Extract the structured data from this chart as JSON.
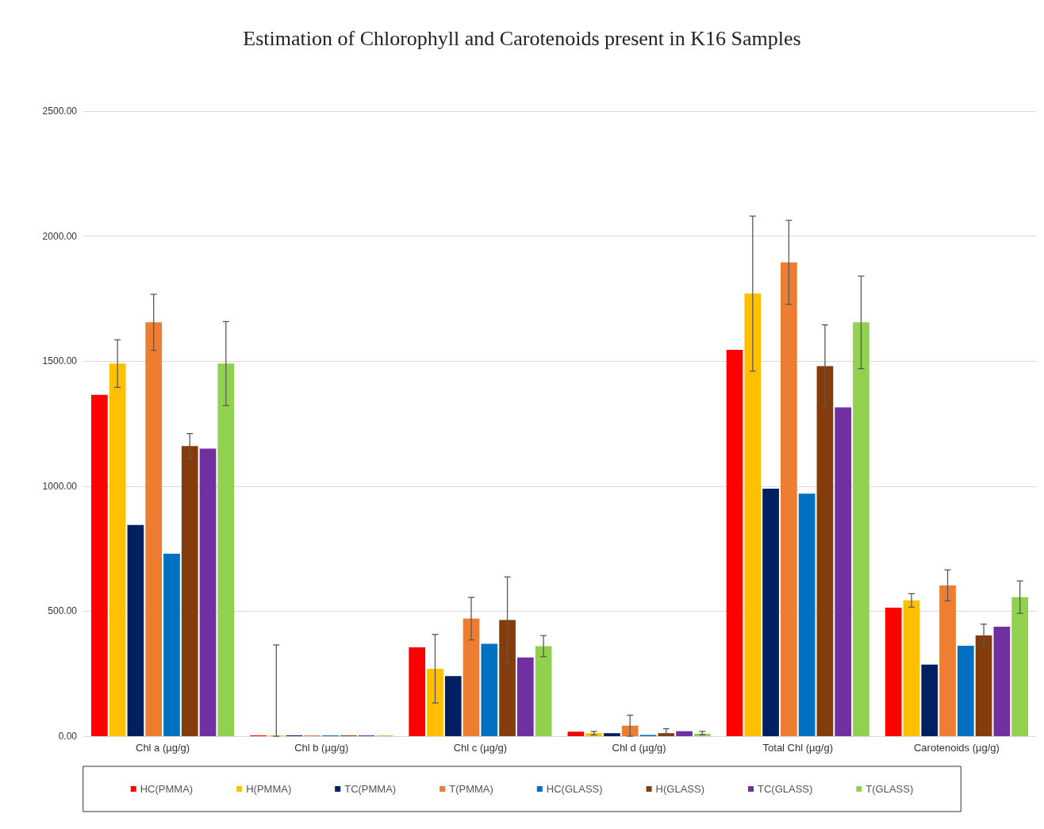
{
  "chart_data": {
    "type": "bar",
    "title": "Estimation of Chlorophyll and Carotenoids present in K16 Samples",
    "categories": [
      "Chl a (µg/g)",
      "Chl b (µg/g)",
      "Chl c (µg/g)",
      "Chl d (µg/g)",
      "Total Chl (µg/g)",
      "Carotenoids (µg/g)"
    ],
    "series": [
      {
        "name": "HC(PMMA)",
        "color": "#ff0000",
        "values": [
          1365,
          0,
          355,
          18,
          1545,
          514
        ]
      },
      {
        "name": "H(PMMA)",
        "color": "#ffc000",
        "values": [
          1490,
          0,
          270,
          12,
          1770,
          543
        ],
        "errors": [
          95,
          365,
          137,
          7,
          310,
          27
        ]
      },
      {
        "name": "TC(PMMA)",
        "color": "#002060",
        "values": [
          845,
          0,
          240,
          12,
          990,
          286
        ]
      },
      {
        "name": "T(PMMA)",
        "color": "#ed7d31",
        "values": [
          1655,
          0,
          470,
          42,
          1895,
          603
        ],
        "errors": [
          112,
          null,
          85,
          42,
          168,
          62
        ]
      },
      {
        "name": "HC(GLASS)",
        "color": "#0070c0",
        "values": [
          730,
          0,
          370,
          5,
          970,
          362
        ]
      },
      {
        "name": "H(GLASS)",
        "color": "#843c0c",
        "values": [
          1160,
          0,
          465,
          12,
          1480,
          403
        ],
        "errors": [
          50,
          null,
          172,
          [
            10,
            30
          ],
          165,
          45
        ]
      },
      {
        "name": "TC(GLASS)",
        "color": "#7030a0",
        "values": [
          1150,
          0,
          315,
          20,
          1315,
          438
        ]
      },
      {
        "name": "T(GLASS)",
        "color": "#92d050",
        "values": [
          1490,
          0,
          360,
          10,
          1655,
          556
        ],
        "errors": [
          168,
          null,
          42,
          [
            6,
            19
          ],
          185,
          65
        ]
      }
    ],
    "ylim": [
      0,
      2500
    ],
    "yticks": [
      {
        "value": 0,
        "label": "0.00"
      },
      {
        "value": 500,
        "label": "500.00"
      },
      {
        "value": 1000,
        "label": "1000.00"
      },
      {
        "value": 1500,
        "label": "1500.00"
      },
      {
        "value": 2000,
        "label": "2000.00"
      },
      {
        "value": 2500,
        "label": "2500.00"
      }
    ],
    "grid": "y",
    "legend": "bottom"
  }
}
